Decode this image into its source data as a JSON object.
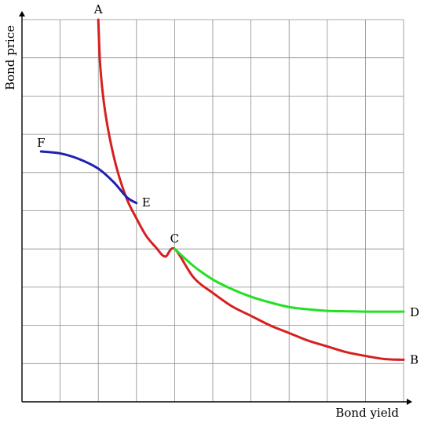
{
  "chart_data": {
    "type": "line",
    "title": "",
    "xlabel": "Bond yield",
    "ylabel": "Bond price",
    "xlim": [
      0,
      10
    ],
    "ylim": [
      0,
      10
    ],
    "grid": true,
    "series": [
      {
        "key": "red",
        "color": "#d62020",
        "x": [
          2.0,
          2.05,
          2.15,
          2.3,
          2.5,
          2.75,
          3.0,
          3.25,
          3.5,
          3.75,
          4.0,
          4.5,
          5.0,
          5.5,
          6.0,
          6.5,
          7.0,
          7.5,
          8.0,
          8.5,
          9.0,
          9.5,
          10.0
        ],
        "y": [
          10.0,
          8.8,
          7.8,
          6.9,
          6.05,
          5.3,
          4.8,
          4.35,
          4.05,
          3.8,
          4.0,
          3.25,
          2.85,
          2.5,
          2.25,
          2.0,
          1.8,
          1.6,
          1.45,
          1.3,
          1.2,
          1.12,
          1.1
        ]
      },
      {
        "key": "blue",
        "color": "#1f1fb0",
        "x": [
          0.5,
          1.0,
          1.5,
          2.0,
          2.4,
          2.75,
          3.0
        ],
        "y": [
          6.55,
          6.5,
          6.35,
          6.1,
          5.75,
          5.35,
          5.2
        ]
      },
      {
        "key": "green",
        "color": "#22e022",
        "x": [
          4.0,
          4.5,
          5.0,
          5.5,
          6.0,
          6.5,
          7.0,
          7.5,
          8.0,
          8.5,
          9.0,
          9.5,
          10.0
        ],
        "y": [
          4.0,
          3.55,
          3.2,
          2.95,
          2.75,
          2.6,
          2.48,
          2.42,
          2.38,
          2.37,
          2.36,
          2.36,
          2.36
        ]
      }
    ],
    "annotations": [
      {
        "text": "A",
        "x": 2.0,
        "y": 10.0
      },
      {
        "text": "B",
        "x": 10.0,
        "y": 1.1
      },
      {
        "text": "C",
        "x": 4.0,
        "y": 4.0
      },
      {
        "text": "D",
        "x": 10.0,
        "y": 2.36
      },
      {
        "text": "E",
        "x": 3.0,
        "y": 5.2
      },
      {
        "text": "F",
        "x": 0.5,
        "y": 6.55
      }
    ]
  }
}
